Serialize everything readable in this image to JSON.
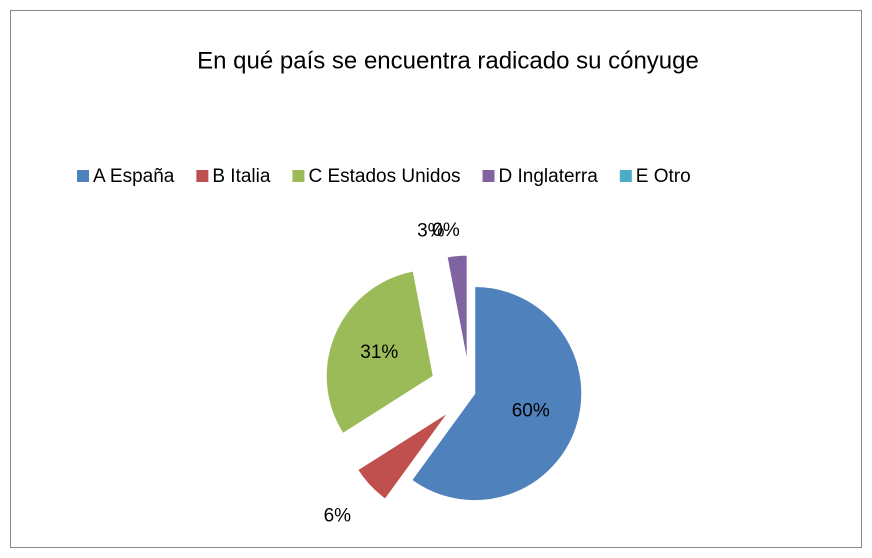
{
  "chart_data": {
    "type": "pie",
    "title": "En qué país se encuentra radicado su cónyuge",
    "categories": [
      "A España",
      "B Italia",
      "C Estados Unidos",
      "D Inglaterra",
      "E Otro"
    ],
    "values": [
      60,
      6,
      31,
      3,
      0
    ],
    "value_labels": [
      "60%",
      "6%",
      "31%",
      "3%",
      "0%"
    ],
    "colors": [
      "#4f81bd",
      "#c0504d",
      "#9bbb59",
      "#8064a2",
      "#4bacc6"
    ]
  }
}
